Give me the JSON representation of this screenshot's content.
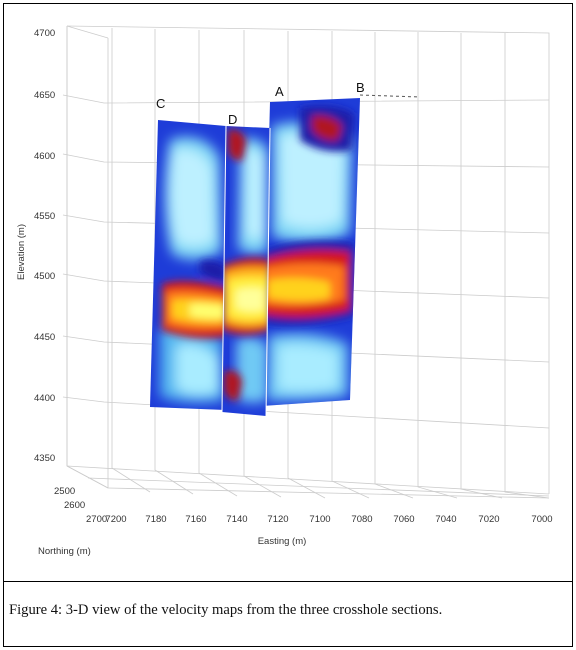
{
  "figure": {
    "section_labels": {
      "c": "C",
      "d": "D",
      "a": "A",
      "b": "B"
    },
    "z_axis": {
      "label": "Elevation (m)",
      "ticks": [
        "4700",
        "4650",
        "4600",
        "4550",
        "4500",
        "4450",
        "4400",
        "4350"
      ]
    },
    "x_axis": {
      "label": "Easting (m)",
      "ticks": [
        "7200",
        "7180",
        "7160",
        "7140",
        "7120",
        "7100",
        "7080",
        "7060",
        "7040",
        "7020",
        "7000"
      ]
    },
    "y_axis": {
      "label": "Northing (m)",
      "ticks": [
        "2500",
        "2600",
        "2700"
      ]
    }
  },
  "caption": "Figure 4: 3-D view of the velocity maps from the three crosshole sections."
}
